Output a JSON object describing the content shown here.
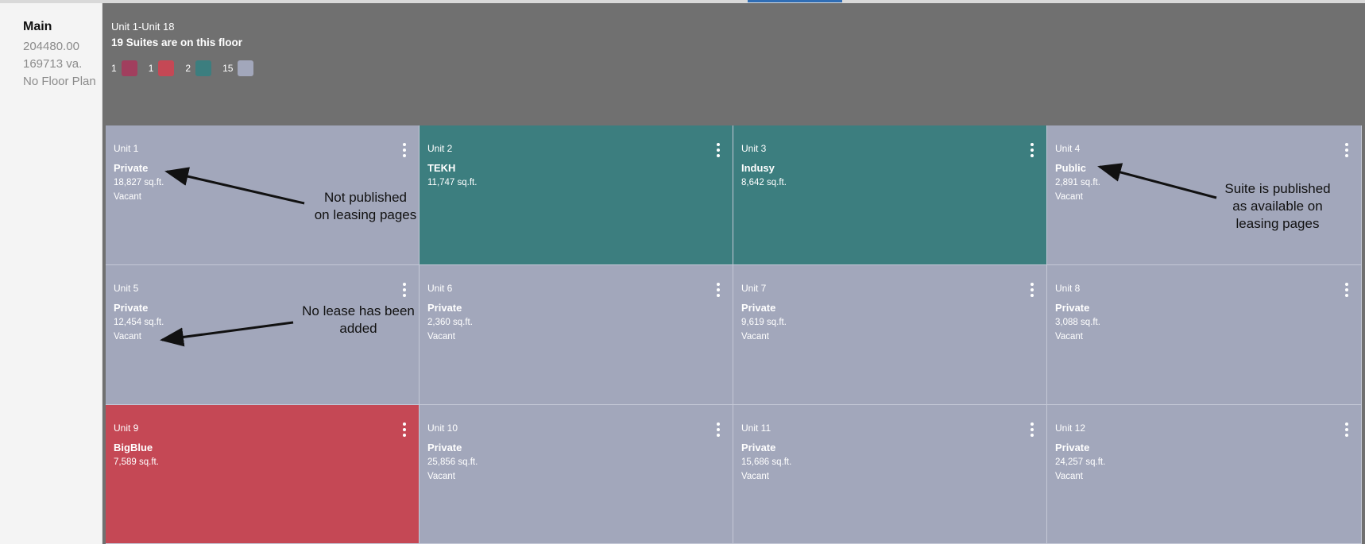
{
  "colors": {
    "private": "#a2a7bb",
    "occupied": "#3c7e7f",
    "bigblue": "#c54855",
    "maroon": "#a13f5e",
    "header": "#707070"
  },
  "sidebar": {
    "title": "Main",
    "line1": "204480.00",
    "line2": "169713 va.",
    "line3": "No Floor Plan"
  },
  "floor": {
    "range": "Unit 1-Unit 18",
    "summary": "19 Suites are on this floor",
    "legend": [
      {
        "count": "1",
        "color": "#a13f5e"
      },
      {
        "count": "1",
        "color": "#c54855"
      },
      {
        "count": "2",
        "color": "#3c7e7f"
      },
      {
        "count": "15",
        "color": "#a2a7bb"
      }
    ]
  },
  "suites": [
    {
      "unit": "Unit 1",
      "tenant": "Private",
      "area": "18,827 sq.ft.",
      "status": "Vacant",
      "color": "#a2a7bb"
    },
    {
      "unit": "Unit 2",
      "tenant": "TEKH",
      "area": "11,747 sq.ft.",
      "status": "",
      "color": "#3c7e7f"
    },
    {
      "unit": "Unit 3",
      "tenant": "Indusy",
      "area": "8,642 sq.ft.",
      "status": "",
      "color": "#3c7e7f"
    },
    {
      "unit": "Unit 4",
      "tenant": "Public",
      "area": "2,891 sq.ft.",
      "status": "Vacant",
      "color": "#a2a7bb"
    },
    {
      "unit": "Unit 5",
      "tenant": "Private",
      "area": "12,454 sq.ft.",
      "status": "Vacant",
      "color": "#a2a7bb"
    },
    {
      "unit": "Unit 6",
      "tenant": "Private",
      "area": "2,360 sq.ft.",
      "status": "Vacant",
      "color": "#a2a7bb"
    },
    {
      "unit": "Unit 7",
      "tenant": "Private",
      "area": "9,619 sq.ft.",
      "status": "Vacant",
      "color": "#a2a7bb"
    },
    {
      "unit": "Unit 8",
      "tenant": "Private",
      "area": "3,088 sq.ft.",
      "status": "Vacant",
      "color": "#a2a7bb"
    },
    {
      "unit": "Unit 9",
      "tenant": "BigBlue",
      "area": "7,589 sq.ft.",
      "status": "",
      "color": "#c54855"
    },
    {
      "unit": "Unit 10",
      "tenant": "Private",
      "area": "25,856 sq.ft.",
      "status": "Vacant",
      "color": "#a2a7bb"
    },
    {
      "unit": "Unit 11",
      "tenant": "Private",
      "area": "15,686 sq.ft.",
      "status": "Vacant",
      "color": "#a2a7bb"
    },
    {
      "unit": "Unit 12",
      "tenant": "Private",
      "area": "24,257 sq.ft.",
      "status": "Vacant",
      "color": "#a2a7bb"
    }
  ],
  "annotations": {
    "not_published_1": "Not published",
    "not_published_2": "on leasing pages",
    "no_lease_1": "No lease has been",
    "no_lease_2": "added",
    "published_1": "Suite is published",
    "published_2": "as available on",
    "published_3": "leasing pages"
  },
  "icons": {
    "suite_menu": "more-vertical-icon"
  }
}
